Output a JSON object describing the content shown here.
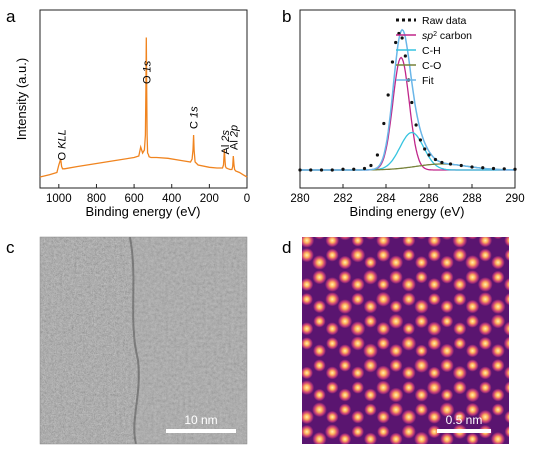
{
  "panels": {
    "a": "a",
    "b": "b",
    "c": "c",
    "d": "d"
  },
  "chart_data": [
    {
      "panel": "a",
      "type": "line",
      "xlabel": "Binding energy (eV)",
      "ylabel": "Intensity (a.u.)",
      "xlim": [
        1100,
        0
      ],
      "x_reversed": true,
      "xticks": [
        1000,
        800,
        600,
        400,
        200,
        0
      ],
      "line_color": "#f0841f",
      "series": [
        {
          "x": [
            1100,
            1050,
            1010,
            1000,
            990,
            985,
            980,
            970,
            900,
            800,
            700,
            600,
            575,
            565,
            555,
            545,
            540,
            537,
            535,
            533,
            531,
            528,
            524,
            520,
            510,
            480,
            420,
            350,
            300,
            292,
            287,
            284,
            281,
            276,
            260,
            200,
            160,
            130,
            125,
            120,
            117,
            114,
            110,
            100,
            90,
            80,
            76,
            73,
            69,
            66,
            60,
            40,
            20,
            0
          ],
          "y": [
            0.02,
            0.035,
            0.05,
            0.1,
            0.14,
            0.09,
            0.075,
            0.075,
            0.09,
            0.11,
            0.13,
            0.15,
            0.16,
            0.22,
            0.18,
            0.2,
            0.3,
            0.6,
            0.95,
            0.6,
            0.3,
            0.18,
            0.17,
            0.155,
            0.15,
            0.15,
            0.145,
            0.13,
            0.12,
            0.14,
            0.2,
            0.3,
            0.2,
            0.12,
            0.1,
            0.085,
            0.08,
            0.08,
            0.1,
            0.2,
            0.13,
            0.09,
            0.08,
            0.075,
            0.07,
            0.07,
            0.09,
            0.16,
            0.1,
            0.07,
            0.06,
            0.05,
            0.035,
            0.02
          ]
        }
      ],
      "annotations": [
        {
          "label": "O KLL",
          "x": 985
        },
        {
          "label": "O 1s",
          "x": 533
        },
        {
          "label": "C 1s",
          "x": 284
        },
        {
          "label": "Al 2s",
          "x": 118
        },
        {
          "label": "Al 2p",
          "x": 73
        }
      ]
    },
    {
      "panel": "b",
      "type": "line",
      "xlabel": "Binding energy (eV)",
      "xlim": [
        280,
        290
      ],
      "xticks": [
        280,
        282,
        284,
        286,
        288,
        290
      ],
      "background_level": 0.12,
      "legend": {
        "position": "top-right",
        "entries": [
          "Raw data",
          "sp2 carbon",
          "C-H",
          "C-O",
          "Fit"
        ]
      },
      "components": [
        {
          "name": "sp2 carbon",
          "type": "gaussian",
          "center": 284.7,
          "height": 0.75,
          "sigma": 0.38,
          "color": "#c0268a"
        },
        {
          "name": "C-H",
          "type": "gaussian",
          "center": 285.2,
          "height": 0.25,
          "sigma": 0.55,
          "color": "#36c4e0"
        },
        {
          "name": "C-O",
          "type": "gaussian",
          "center": 286.6,
          "height": 0.04,
          "sigma": 1.2,
          "color": "#77823a"
        }
      ],
      "fit_color": "#6ab6e8",
      "raw_data": {
        "name": "Raw data",
        "x": [
          280.0,
          280.5,
          281.0,
          281.5,
          282.0,
          282.5,
          283.0,
          283.3,
          283.6,
          283.9,
          284.1,
          284.3,
          284.45,
          284.6,
          284.75,
          284.9,
          285.05,
          285.2,
          285.4,
          285.6,
          285.8,
          286.0,
          286.3,
          286.6,
          287.0,
          287.5,
          288.0,
          288.5,
          289.0,
          289.5,
          290.0
        ],
        "y": [
          0.12,
          0.12,
          0.12,
          0.12,
          0.125,
          0.125,
          0.13,
          0.15,
          0.22,
          0.43,
          0.62,
          0.84,
          0.97,
          1.03,
          1.0,
          0.88,
          0.72,
          0.57,
          0.42,
          0.32,
          0.26,
          0.22,
          0.19,
          0.17,
          0.16,
          0.15,
          0.14,
          0.135,
          0.13,
          0.128,
          0.125
        ]
      }
    }
  ],
  "images": {
    "c": {
      "scale_bar": "10 nm",
      "style": "grayscale-tem"
    },
    "d": {
      "scale_bar": "0.5 nm",
      "style": "false-color-atomic",
      "colors": [
        "#3a0a4a",
        "#7a1d8c",
        "#c0368a",
        "#f0703a",
        "#ffd98a"
      ]
    }
  }
}
